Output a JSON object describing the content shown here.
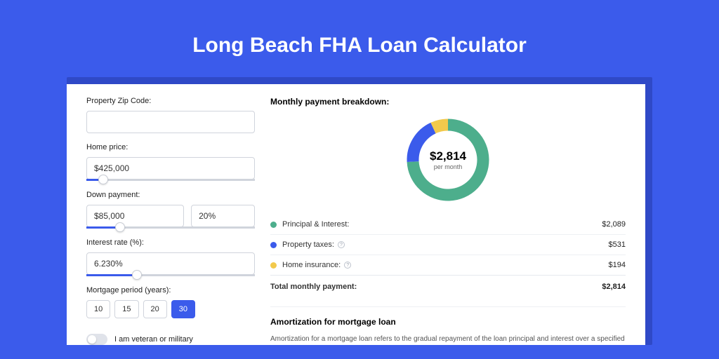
{
  "page": {
    "title": "Long Beach FHA Loan Calculator",
    "background_color": "#3B5BEB",
    "shadow_color": "#2F49C7"
  },
  "form": {
    "zip": {
      "label": "Property Zip Code:",
      "value": ""
    },
    "home_price": {
      "label": "Home price:",
      "value": "$425,000",
      "slider_pct": 10
    },
    "down_payment": {
      "label": "Down payment:",
      "amount": "$85,000",
      "percent": "20%",
      "slider_pct": 20
    },
    "interest_rate": {
      "label": "Interest rate (%):",
      "value": "6.230%",
      "slider_pct": 30
    },
    "period": {
      "label": "Mortgage period (years):",
      "options": [
        "10",
        "15",
        "20",
        "30"
      ],
      "selected": "30"
    },
    "veteran": {
      "label": "I am veteran or military",
      "checked": false
    }
  },
  "breakdown": {
    "title": "Monthly payment breakdown:",
    "donut": {
      "center_amount": "$2,814",
      "center_sub": "per month",
      "slices": [
        {
          "name": "principal_interest",
          "pct": 74.2,
          "color": "#4DAE8C"
        },
        {
          "name": "property_taxes",
          "pct": 18.9,
          "color": "#3B5BEB"
        },
        {
          "name": "home_insurance",
          "pct": 6.9,
          "color": "#F2C94C"
        }
      ],
      "stroke_width": 17
    },
    "rows": [
      {
        "label": "Principal & Interest:",
        "value": "$2,089",
        "color": "#4DAE8C",
        "info": false
      },
      {
        "label": "Property taxes:",
        "value": "$531",
        "color": "#3B5BEB",
        "info": true
      },
      {
        "label": "Home insurance:",
        "value": "$194",
        "color": "#F2C94C",
        "info": true
      }
    ],
    "total": {
      "label": "Total monthly payment:",
      "value": "$2,814"
    }
  },
  "amortization": {
    "title": "Amortization for mortgage loan",
    "text": "Amortization for a mortgage loan refers to the gradual repayment of the loan principal and interest over a specified"
  }
}
